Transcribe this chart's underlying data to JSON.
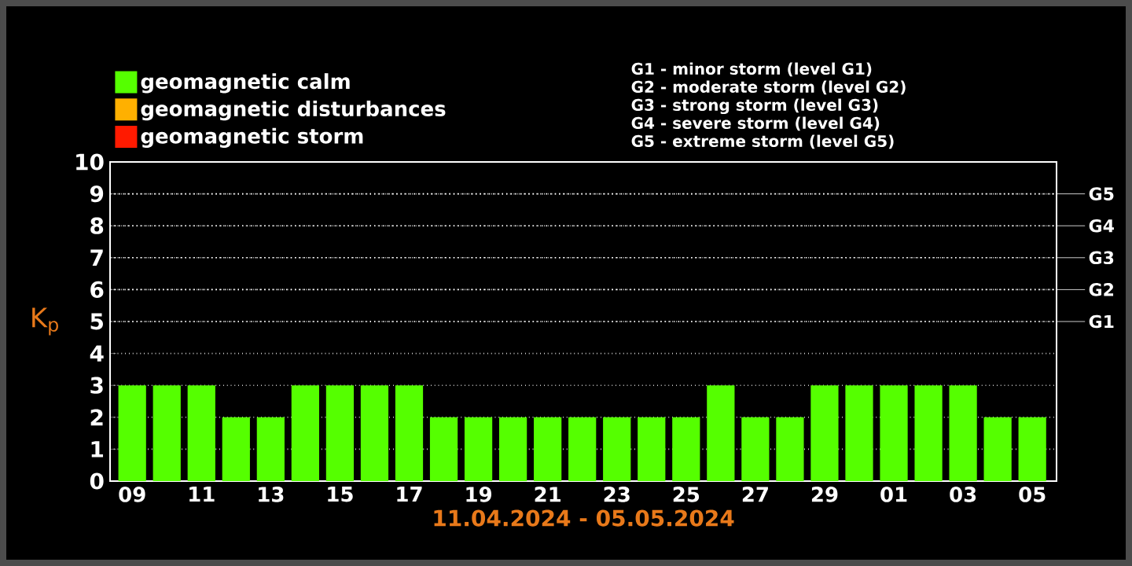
{
  "chart_data": {
    "type": "bar",
    "categories": [
      "09",
      null,
      "11",
      null,
      "13",
      null,
      "15",
      null,
      "17",
      null,
      "19",
      null,
      "21",
      null,
      "23",
      null,
      "25",
      null,
      "27",
      null,
      "29",
      null,
      "01",
      null,
      "03",
      null,
      "05"
    ],
    "series": [
      {
        "name": "geomagnetic calm",
        "color": "#55ff00",
        "values": [
          3,
          3,
          3,
          2,
          2,
          3,
          3,
          3,
          3,
          2,
          2,
          2,
          2,
          2,
          2,
          2,
          2,
          3,
          2,
          2,
          3,
          3,
          3,
          3,
          3,
          2,
          2
        ]
      },
      {
        "name": "geomagnetic disturbances",
        "color": "#ffb000",
        "values": [
          null,
          null,
          null,
          null,
          null,
          null,
          null,
          null,
          null,
          null,
          null,
          null,
          null,
          null,
          null,
          null,
          null,
          null,
          null,
          null,
          null,
          null,
          null,
          null,
          null,
          null,
          null
        ]
      },
      {
        "name": "geomagnetic storm",
        "color": "#ff1a00",
        "values": [
          null,
          null,
          null,
          null,
          null,
          null,
          null,
          null,
          null,
          null,
          null,
          null,
          null,
          null,
          null,
          null,
          null,
          null,
          null,
          null,
          null,
          null,
          null,
          null,
          null,
          null,
          null
        ]
      }
    ],
    "xlabel": "11.04.2024 - 05.05.2024",
    "ylabel": "K$_{p}$",
    "ylim": [
      0,
      10
    ],
    "yticks": [
      0,
      1,
      2,
      3,
      4,
      5,
      6,
      7,
      8,
      9,
      10
    ],
    "ref_lines": [
      {
        "axis": "y",
        "value": 5,
        "label": "G1"
      },
      {
        "axis": "y",
        "value": 6,
        "label": "G2"
      },
      {
        "axis": "y",
        "value": 7,
        "label": "G3"
      },
      {
        "axis": "y",
        "value": 8,
        "label": "G4"
      },
      {
        "axis": "y",
        "value": 9,
        "label": "G5"
      }
    ],
    "annotations": [
      "G1 - minor storm (level G1)",
      "G2 - moderate storm (level G2)",
      "G3 - strong storm (level G3)",
      "G4 - severe storm (level G4)",
      "G5 - extreme storm (level G5)"
    ],
    "grid": "y",
    "legend": "top left"
  }
}
